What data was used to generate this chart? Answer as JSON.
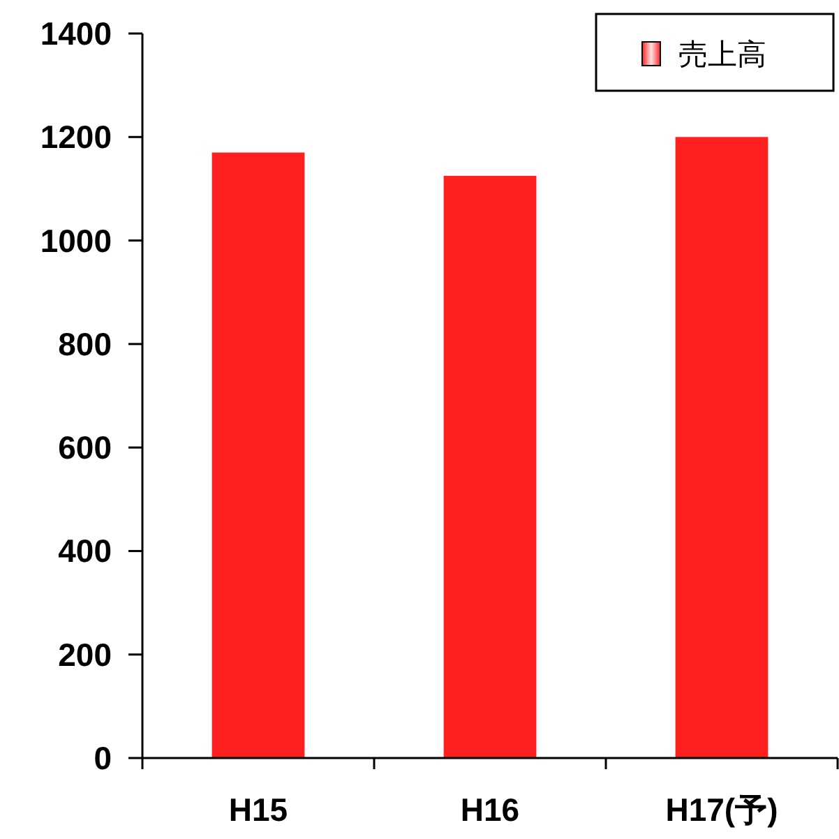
{
  "chart_data": {
    "type": "bar",
    "categories": [
      "H15",
      "H16",
      "H17(予)"
    ],
    "series": [
      {
        "name": "売上高",
        "color": "#ff2020",
        "values": [
          1170,
          1125,
          1200
        ]
      }
    ],
    "ylim": [
      0,
      1400
    ],
    "yticks": [
      0,
      200,
      400,
      600,
      800,
      1000,
      1200,
      1400
    ],
    "grid": false,
    "legend": "top right"
  }
}
